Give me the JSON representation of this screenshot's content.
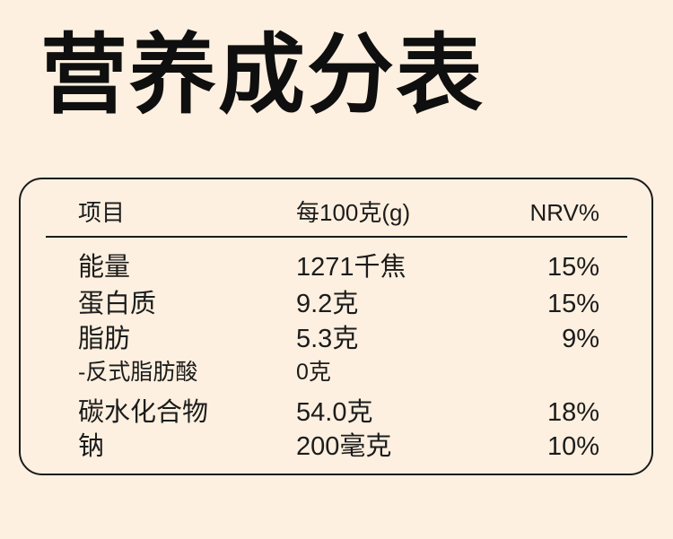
{
  "page": {
    "background_color": "#fdf0e0",
    "text_color": "#1c1c1c",
    "border_color": "#1b1b1b"
  },
  "title": "营养成分表",
  "table": {
    "headers": {
      "item": "项目",
      "per_100g": "每100克(g)",
      "nrv": "NRV%"
    },
    "rows": [
      {
        "label": "能量",
        "amount": "1271千焦",
        "nrv": "15%"
      },
      {
        "label": "蛋白质",
        "amount": "9.2克",
        "nrv": "15%"
      },
      {
        "label": "脂肪",
        "amount": "5.3克",
        "nrv": "9%"
      },
      {
        "label": "-反式脂肪酸",
        "amount": "0克",
        "nrv": ""
      },
      {
        "label": "碳水化合物",
        "amount": "54.0克",
        "nrv": "18%"
      },
      {
        "label": "钠",
        "amount": "200毫克",
        "nrv": "10%"
      }
    ]
  }
}
